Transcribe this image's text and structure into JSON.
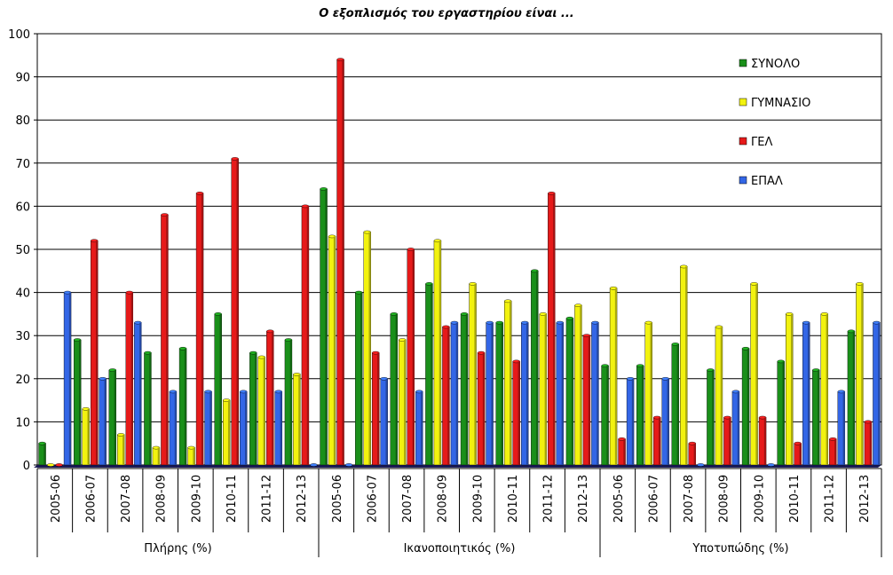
{
  "chart_data": {
    "type": "bar",
    "title": "Ο εξοπλισμός του εργαστηρίου είναι ...",
    "xlabel": "",
    "ylabel": "",
    "ylim": [
      0,
      100
    ],
    "yticks": [
      "0",
      "10",
      "20",
      "30",
      "40",
      "50",
      "60",
      "70",
      "80",
      "90",
      "100"
    ],
    "grid": true,
    "legend_position": "top-right",
    "groups": [
      "Πλήρης (%)",
      "Ικανοποιητικός (%)",
      "Υποτυπώδης (%)"
    ],
    "years": [
      "2005-06",
      "2006-07",
      "2007-08",
      "2008-09",
      "2009-10",
      "2010-11",
      "2011-12",
      "2012-13"
    ],
    "series": [
      {
        "name": "ΣΥΝΟΛΟ",
        "color": "#1a8f1a",
        "values": [
          5,
          29,
          22,
          26,
          27,
          35,
          26,
          29,
          64,
          40,
          35,
          42,
          35,
          33,
          45,
          34,
          23,
          23,
          28,
          22,
          27,
          24,
          22,
          31
        ]
      },
      {
        "name": "ΓΥΜΝΑΣΙΟ",
        "color": "#f2f20f",
        "values": [
          0,
          13,
          7,
          4,
          4,
          15,
          25,
          21,
          53,
          54,
          29,
          52,
          42,
          38,
          35,
          37,
          41,
          33,
          46,
          32,
          42,
          35,
          35,
          42
        ]
      },
      {
        "name": "ΓΕΛ",
        "color": "#e61a1a",
        "values": [
          0,
          52,
          40,
          58,
          63,
          71,
          31,
          60,
          94,
          26,
          50,
          32,
          26,
          24,
          63,
          30,
          6,
          11,
          5,
          11,
          11,
          5,
          6,
          10
        ]
      },
      {
        "name": "ΕΠΑΛ",
        "color": "#3366e6",
        "values": [
          40,
          20,
          33,
          17,
          17,
          17,
          17,
          0,
          0,
          20,
          17,
          33,
          33,
          33,
          33,
          33,
          20,
          20,
          0,
          17,
          0,
          33,
          17,
          33
        ]
      }
    ]
  }
}
